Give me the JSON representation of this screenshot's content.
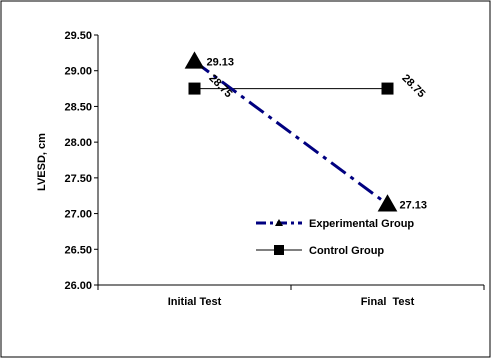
{
  "chart_data": {
    "type": "line",
    "categories": [
      "Initial Test",
      "Final  Test"
    ],
    "ylabel": "LVESD, cm",
    "ylim": [
      26.0,
      29.5
    ],
    "ytick_step": 0.5,
    "ytick_labels": [
      "26.00",
      "26.50",
      "27.00",
      "27.50",
      "28.00",
      "28.50",
      "29.00",
      "29.50"
    ],
    "grid": false,
    "legend_position": "bottom-right inside",
    "series": [
      {
        "name": "Experimental Group",
        "values": [
          29.13,
          27.13
        ],
        "labels": [
          "29.13",
          "27.13"
        ],
        "color": "#000080",
        "line_style": "dash-dot",
        "marker": "triangle"
      },
      {
        "name": "Control Group",
        "values": [
          28.75,
          28.75
        ],
        "labels": [
          "28.75",
          "28.75"
        ],
        "color": "#000000",
        "line_style": "solid",
        "marker": "square"
      }
    ]
  }
}
